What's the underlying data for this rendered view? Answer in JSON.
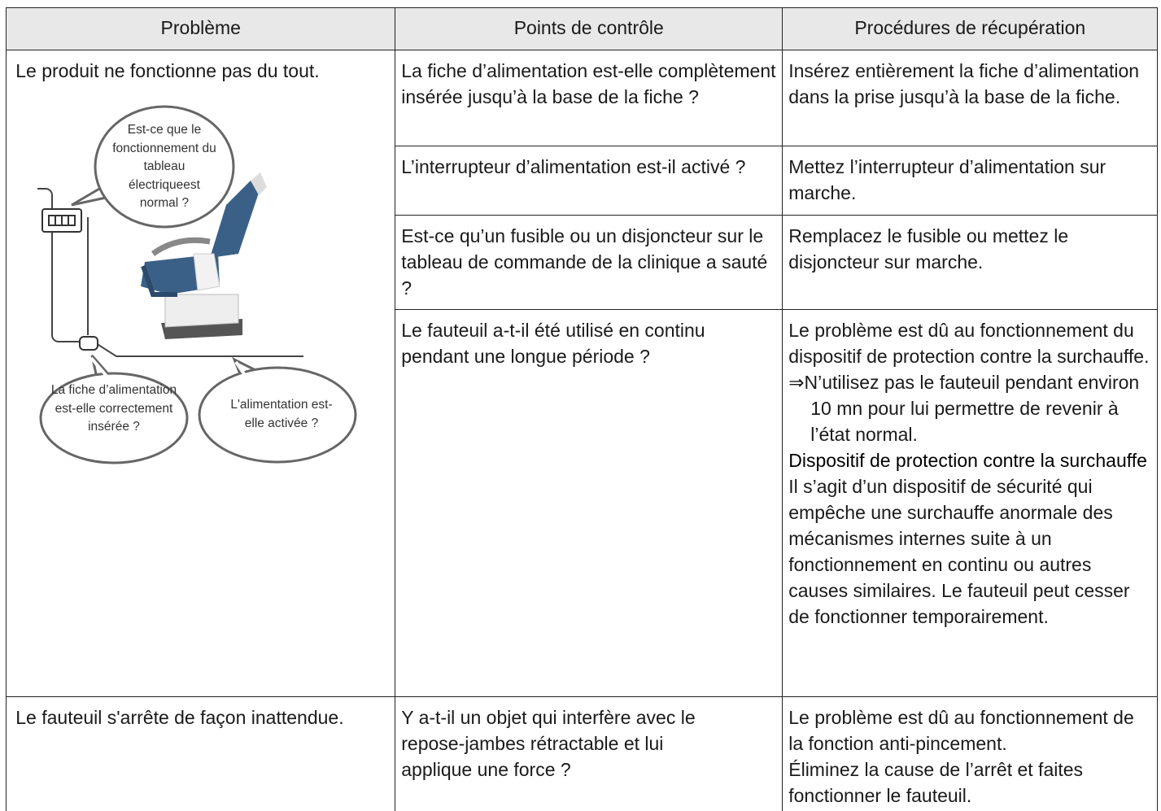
{
  "table": {
    "headers": [
      "Problème",
      "Points de contrôle",
      "Procédures de récupération"
    ],
    "rows": [
      {
        "problem": "Le produit ne fonctionne pas du tout.",
        "callouts": [
          "Est-ce que le fonctionnement du tableau électriqueest normal ?",
          "La fiche d’alimentation est-elle correctement insérée ?",
          "L'alimentation est-elle activée ?"
        ],
        "checks": [
          {
            "check": "La fiche d’alimentation est-elle complètement insérée jusqu’à la base de la fiche ?",
            "recovery": [
              "Insérez entièrement la fiche d’alimentation dans la prise jusqu’à la base de la fiche."
            ]
          },
          {
            "check": "L’interrupteur d’alimentation est-il activé ?",
            "recovery": [
              "Mettez l’interrupteur d’alimentation sur marche."
            ]
          },
          {
            "check": "Est-ce qu’un fusible ou un disjoncteur sur le tableau de commande de la clinique a sauté ?",
            "recovery": [
              "Remplacez le fusible ou mettez le disjoncteur sur marche."
            ]
          },
          {
            "check": "Le fauteuil a-t-il été utilisé en continu pendant une longue période ?",
            "recovery": [
              "Le problème est dû au fonctionnement du dispositif de protection contre la surchauffe.",
              "⇒N’utilisez pas le fauteuil pendant environ 10 mn pour lui permettre de revenir à l’état normal.",
              "Dispositif de protection contre la surchauffe",
              "Il s’agit d’un dispositif de sécurité qui empêche une surchauffe anormale des mécanismes internes suite à un fonctionnement en continu ou autres causes similaires. Le fauteuil peut cesser de fonctionner temporairement."
            ]
          }
        ]
      },
      {
        "problem": "Le fauteuil s'arrête de façon inattendue.",
        "checks": [
          {
            "check": "Y a-t-il un objet qui interfère avec le repose-jambes rétractable et lui applique une force ?",
            "recovery": [
              "Le problème est dû au fonctionnement de la fonction anti-pincement.",
              "Éliminez la cause de l’arrêt et faites fonctionner le fauteuil."
            ]
          }
        ]
      }
    ]
  }
}
